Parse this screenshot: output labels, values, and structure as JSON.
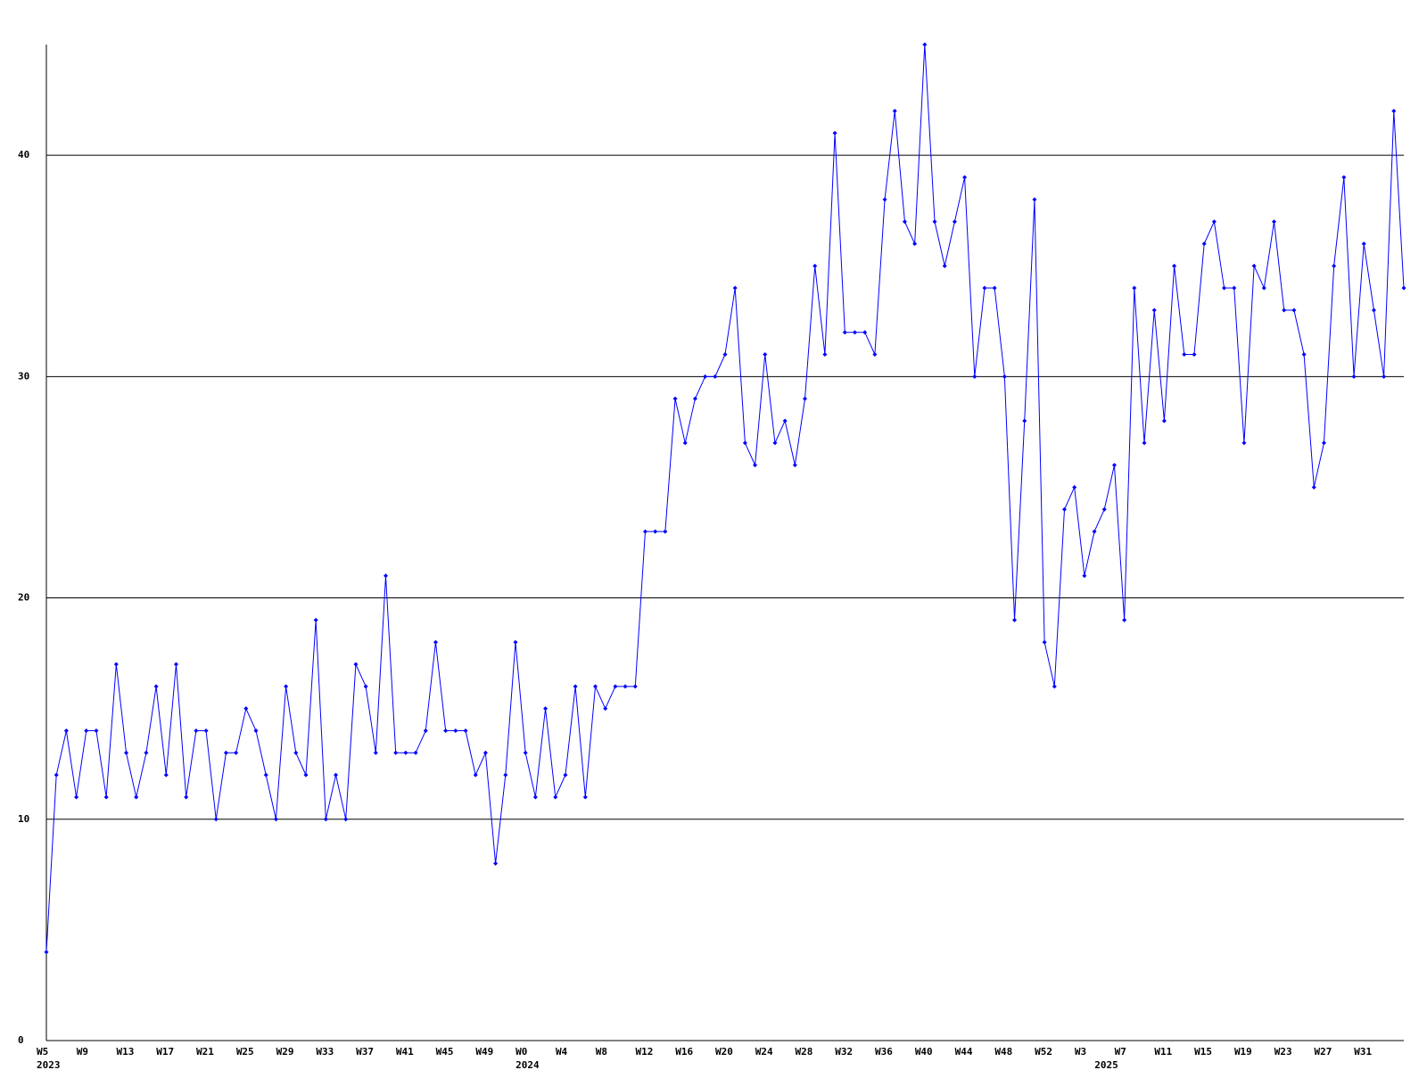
{
  "chart_data": {
    "type": "line",
    "categories": [
      "W5",
      null,
      null,
      null,
      "W9",
      null,
      null,
      null,
      "W13",
      null,
      null,
      null,
      "W17",
      null,
      null,
      null,
      "W21",
      null,
      null,
      null,
      "W25",
      null,
      null,
      null,
      "W29",
      null,
      null,
      null,
      "W33",
      null,
      null,
      null,
      "W37",
      null,
      null,
      null,
      "W41",
      null,
      null,
      null,
      "W45",
      null,
      null,
      null,
      "W49",
      null,
      null,
      null,
      "W0",
      null,
      null,
      null,
      "W4",
      null,
      null,
      null,
      "W8",
      null,
      null,
      null,
      "W12",
      null,
      null,
      null,
      "W16",
      null,
      null,
      null,
      "W20",
      null,
      null,
      null,
      "W24",
      null,
      null,
      null,
      "W28",
      null,
      null,
      null,
      "W32",
      null,
      null,
      null,
      "W36",
      null,
      null,
      null,
      "W40",
      null,
      null,
      null,
      "W44",
      null,
      null,
      null,
      "W48",
      null,
      null,
      null,
      "W52",
      null,
      null,
      null,
      "W3",
      null,
      null,
      null,
      "W7",
      null,
      null,
      null,
      "W11",
      null,
      null,
      null,
      "W15",
      null,
      null,
      null,
      "W19",
      null,
      null,
      null,
      "W23",
      null,
      null,
      null,
      "W27",
      null,
      null,
      null,
      "W31",
      null,
      null,
      null,
      null
    ],
    "years": [
      "2023",
      null,
      null,
      null,
      null,
      null,
      null,
      null,
      null,
      null,
      null,
      null,
      null,
      null,
      null,
      null,
      null,
      null,
      null,
      null,
      null,
      null,
      null,
      null,
      null,
      null,
      null,
      null,
      null,
      null,
      null,
      null,
      null,
      null,
      null,
      null,
      null,
      null,
      null,
      null,
      null,
      null,
      null,
      null,
      null,
      null,
      null,
      null,
      "2024",
      null,
      null,
      null,
      null,
      null,
      null,
      null,
      null,
      null,
      null,
      null,
      null,
      null,
      null,
      null,
      null,
      null,
      null,
      null,
      null,
      null,
      null,
      null,
      null,
      null,
      null,
      null,
      null,
      null,
      null,
      null,
      null,
      null,
      null,
      null,
      null,
      null,
      null,
      null,
      null,
      null,
      null,
      null,
      null,
      null,
      null,
      null,
      null,
      null,
      null,
      null,
      null,
      null,
      null,
      null,
      null,
      null,
      "2025",
      null,
      null,
      null,
      null,
      null,
      null,
      null,
      null,
      null,
      null,
      null,
      null,
      null,
      null,
      null,
      null,
      null,
      null,
      null,
      null,
      null,
      null,
      null,
      null,
      null,
      null,
      null,
      null,
      null,
      null,
      null,
      null
    ],
    "series": [
      {
        "color": "#0000ff",
        "values": [
          4,
          12,
          14,
          11,
          14,
          14,
          11,
          17,
          13,
          11,
          13,
          16,
          12,
          17,
          11,
          14,
          14,
          10,
          13,
          13,
          15,
          14,
          12,
          10,
          16,
          13,
          12,
          19,
          10,
          12,
          10,
          17,
          16,
          13,
          21,
          13,
          13,
          13,
          14,
          18,
          14,
          14,
          14,
          12,
          13,
          8,
          12,
          18,
          13,
          11,
          15,
          11,
          12,
          16,
          11,
          16,
          15,
          16,
          16,
          16,
          23,
          23,
          23,
          29,
          27,
          29,
          30,
          30,
          31,
          34,
          27,
          26,
          31,
          27,
          28,
          26,
          29,
          35,
          31,
          41,
          32,
          32,
          32,
          31,
          38,
          42,
          37,
          36,
          45,
          37,
          35,
          37,
          39,
          30,
          34,
          34,
          30,
          19,
          28,
          38,
          18,
          16,
          24,
          25,
          21,
          23,
          24,
          26,
          19,
          34,
          27,
          33,
          28,
          35,
          31,
          31,
          36,
          37,
          34,
          34,
          27,
          35,
          34,
          37,
          33,
          33,
          31,
          25,
          27,
          35,
          39,
          30,
          36,
          33,
          30,
          42,
          34
        ]
      }
    ],
    "ylim": [
      0,
      45
    ],
    "yticks": [
      0,
      10,
      20,
      30,
      40
    ],
    "grid": true
  }
}
